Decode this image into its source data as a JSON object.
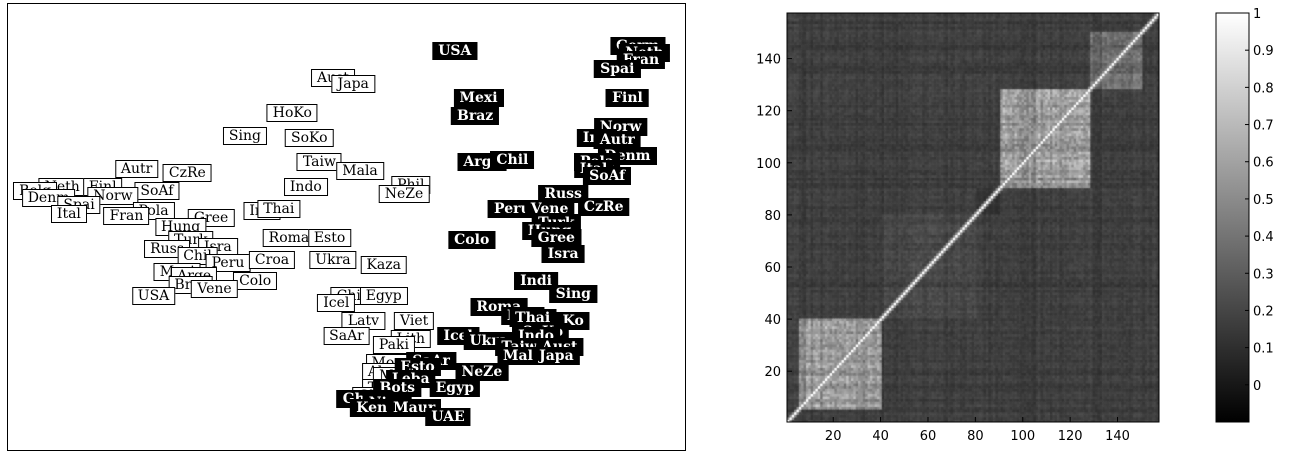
{
  "chart_data": [
    {
      "type": "scatter",
      "labels_white": [
        {
          "t": "Aust",
          "x": 0.48,
          "y": 0.835
        },
        {
          "t": "Japa",
          "x": 0.51,
          "y": 0.82
        },
        {
          "t": "HoKo",
          "x": 0.42,
          "y": 0.755
        },
        {
          "t": "Sing",
          "x": 0.35,
          "y": 0.705
        },
        {
          "t": "SoKo",
          "x": 0.445,
          "y": 0.7
        },
        {
          "t": "Taiw",
          "x": 0.46,
          "y": 0.645
        },
        {
          "t": "Mala",
          "x": 0.52,
          "y": 0.625
        },
        {
          "t": "Indo",
          "x": 0.44,
          "y": 0.59
        },
        {
          "t": "Phil",
          "x": 0.595,
          "y": 0.595
        },
        {
          "t": "NeZe",
          "x": 0.585,
          "y": 0.575
        },
        {
          "t": "Autr",
          "x": 0.19,
          "y": 0.63
        },
        {
          "t": "CzRe",
          "x": 0.265,
          "y": 0.62
        },
        {
          "t": "Neth",
          "x": 0.08,
          "y": 0.59
        },
        {
          "t": "Finl",
          "x": 0.14,
          "y": 0.59
        },
        {
          "t": "SoAf",
          "x": 0.22,
          "y": 0.58
        },
        {
          "t": "Belg",
          "x": 0.04,
          "y": 0.58
        },
        {
          "t": "Norw",
          "x": 0.155,
          "y": 0.57
        },
        {
          "t": "Denm",
          "x": 0.06,
          "y": 0.565
        },
        {
          "t": "Spai",
          "x": 0.105,
          "y": 0.55
        },
        {
          "t": "Ital",
          "x": 0.09,
          "y": 0.53
        },
        {
          "t": "Pola",
          "x": 0.215,
          "y": 0.535
        },
        {
          "t": "Fran",
          "x": 0.175,
          "y": 0.525
        },
        {
          "t": "Gree",
          "x": 0.3,
          "y": 0.52
        },
        {
          "t": "Irel",
          "x": 0.375,
          "y": 0.535
        },
        {
          "t": "Thai",
          "x": 0.4,
          "y": 0.54
        },
        {
          "t": "Hung",
          "x": 0.255,
          "y": 0.5
        },
        {
          "t": "Turk",
          "x": 0.27,
          "y": 0.47
        },
        {
          "t": "Roma",
          "x": 0.415,
          "y": 0.475
        },
        {
          "t": "Esto",
          "x": 0.475,
          "y": 0.475
        },
        {
          "t": "Isra",
          "x": 0.31,
          "y": 0.455
        },
        {
          "t": "Russ",
          "x": 0.235,
          "y": 0.45
        },
        {
          "t": "Chil",
          "x": 0.28,
          "y": 0.435
        },
        {
          "t": "Peru",
          "x": 0.325,
          "y": 0.42
        },
        {
          "t": "Croa",
          "x": 0.39,
          "y": 0.425
        },
        {
          "t": "Ukra",
          "x": 0.48,
          "y": 0.425
        },
        {
          "t": "Kaza",
          "x": 0.555,
          "y": 0.415
        },
        {
          "t": "Mexi",
          "x": 0.25,
          "y": 0.4
        },
        {
          "t": "Arge",
          "x": 0.275,
          "y": 0.39
        },
        {
          "t": "Colo",
          "x": 0.365,
          "y": 0.38
        },
        {
          "t": "Braz",
          "x": 0.27,
          "y": 0.37
        },
        {
          "t": "Vene",
          "x": 0.305,
          "y": 0.36
        },
        {
          "t": "USA",
          "x": 0.215,
          "y": 0.345
        },
        {
          "t": "Chin",
          "x": 0.51,
          "y": 0.345
        },
        {
          "t": "Egyp",
          "x": 0.555,
          "y": 0.345
        },
        {
          "t": "Icel",
          "x": 0.485,
          "y": 0.33
        },
        {
          "t": "Latv",
          "x": 0.525,
          "y": 0.29
        },
        {
          "t": "Viet",
          "x": 0.6,
          "y": 0.29
        },
        {
          "t": "SaAr",
          "x": 0.5,
          "y": 0.255
        },
        {
          "t": "Lith",
          "x": 0.595,
          "y": 0.25
        },
        {
          "t": "Paki",
          "x": 0.57,
          "y": 0.235
        },
        {
          "t": "Moro",
          "x": 0.565,
          "y": 0.195
        },
        {
          "t": "Alge",
          "x": 0.555,
          "y": 0.175
        },
        {
          "t": "Mold",
          "x": 0.575,
          "y": 0.165
        },
        {
          "t": "Tuni",
          "x": 0.555,
          "y": 0.14
        },
        {
          "t": "Ghan",
          "x": 0.545,
          "y": 0.12
        }
      ],
      "labels_black": [
        {
          "t": "USA",
          "x": 0.66,
          "y": 0.895
        },
        {
          "t": "Germ",
          "x": 0.93,
          "y": 0.905
        },
        {
          "t": "Neth",
          "x": 0.94,
          "y": 0.89
        },
        {
          "t": "Fran",
          "x": 0.935,
          "y": 0.875
        },
        {
          "t": "Spai",
          "x": 0.9,
          "y": 0.855
        },
        {
          "t": "Mexi",
          "x": 0.695,
          "y": 0.79
        },
        {
          "t": "Braz",
          "x": 0.69,
          "y": 0.75
        },
        {
          "t": "Finl",
          "x": 0.915,
          "y": 0.79
        },
        {
          "t": "Norw",
          "x": 0.905,
          "y": 0.725
        },
        {
          "t": "Irel",
          "x": 0.87,
          "y": 0.7
        },
        {
          "t": "Autr",
          "x": 0.9,
          "y": 0.695
        },
        {
          "t": "Denm",
          "x": 0.915,
          "y": 0.66
        },
        {
          "t": "Arge",
          "x": 0.7,
          "y": 0.645
        },
        {
          "t": "Chil",
          "x": 0.745,
          "y": 0.65
        },
        {
          "t": "Pola",
          "x": 0.87,
          "y": 0.645
        },
        {
          "t": "Ital",
          "x": 0.865,
          "y": 0.63
        },
        {
          "t": "SoAf",
          "x": 0.885,
          "y": 0.615
        },
        {
          "t": "Russ",
          "x": 0.82,
          "y": 0.575
        },
        {
          "t": "Peru",
          "x": 0.745,
          "y": 0.54
        },
        {
          "t": "Vene",
          "x": 0.8,
          "y": 0.54
        },
        {
          "t": "CzRe",
          "x": 0.88,
          "y": 0.545
        },
        {
          "t": "Turk",
          "x": 0.81,
          "y": 0.51
        },
        {
          "t": "Colo",
          "x": 0.685,
          "y": 0.47
        },
        {
          "t": "Hung",
          "x": 0.8,
          "y": 0.49
        },
        {
          "t": "Gree",
          "x": 0.81,
          "y": 0.475
        },
        {
          "t": "Isra",
          "x": 0.82,
          "y": 0.44
        },
        {
          "t": "Indi",
          "x": 0.78,
          "y": 0.38
        },
        {
          "t": "Sing",
          "x": 0.835,
          "y": 0.35
        },
        {
          "t": "Roma",
          "x": 0.725,
          "y": 0.32
        },
        {
          "t": "Phil",
          "x": 0.76,
          "y": 0.3
        },
        {
          "t": "Thai",
          "x": 0.775,
          "y": 0.295
        },
        {
          "t": "Ko",
          "x": 0.835,
          "y": 0.29
        },
        {
          "t": "SoKo",
          "x": 0.79,
          "y": 0.265
        },
        {
          "t": "Icel",
          "x": 0.665,
          "y": 0.255
        },
        {
          "t": "Ukra",
          "x": 0.71,
          "y": 0.245
        },
        {
          "t": "Indo",
          "x": 0.78,
          "y": 0.255
        },
        {
          "t": "Taiw",
          "x": 0.755,
          "y": 0.23
        },
        {
          "t": "Aust",
          "x": 0.815,
          "y": 0.23
        },
        {
          "t": "Mala",
          "x": 0.76,
          "y": 0.21
        },
        {
          "t": "Japa",
          "x": 0.81,
          "y": 0.21
        },
        {
          "t": "SaAr",
          "x": 0.625,
          "y": 0.2
        },
        {
          "t": "Esto",
          "x": 0.605,
          "y": 0.185
        },
        {
          "t": "NeZe",
          "x": 0.7,
          "y": 0.175
        },
        {
          "t": "Leba",
          "x": 0.595,
          "y": 0.16
        },
        {
          "t": "Bots",
          "x": 0.575,
          "y": 0.14
        },
        {
          "t": "Egyp",
          "x": 0.66,
          "y": 0.14
        },
        {
          "t": "Ghan",
          "x": 0.525,
          "y": 0.115
        },
        {
          "t": "Nige",
          "x": 0.56,
          "y": 0.105
        },
        {
          "t": "Kenya",
          "x": 0.55,
          "y": 0.095
        },
        {
          "t": "Maur",
          "x": 0.6,
          "y": 0.095
        },
        {
          "t": "UAE",
          "x": 0.65,
          "y": 0.075
        }
      ]
    },
    {
      "type": "heatmap",
      "n": 157,
      "xticks": [
        "20",
        "40",
        "60",
        "80",
        "100",
        "120",
        "140"
      ],
      "yticks": [
        "20",
        "40",
        "60",
        "80",
        "100",
        "120",
        "140"
      ],
      "xtick_values": [
        20,
        40,
        60,
        80,
        100,
        120,
        140
      ],
      "ytick_values": [
        20,
        40,
        60,
        80,
        100,
        120,
        140
      ],
      "colorbar_ticks": [
        "1",
        "0.9",
        "0.8",
        "0.7",
        "0.6",
        "0.5",
        "0.4",
        "0.3",
        "0.2",
        "0.1",
        "0"
      ],
      "colorbar_values": [
        1,
        0.9,
        0.8,
        0.7,
        0.6,
        0.5,
        0.4,
        0.3,
        0.2,
        0.1,
        0
      ],
      "colorbar_range": [
        -0.1,
        1
      ],
      "blocks": [
        {
          "range": [
            5,
            40
          ],
          "mean": 0.6
        },
        {
          "range": [
            90,
            128
          ],
          "mean": 0.62
        },
        {
          "range": [
            128,
            150
          ],
          "mean": 0.4
        },
        {
          "range": [
            40,
            80
          ],
          "mean": 0.22
        },
        {
          "range": [
            80,
            90
          ],
          "mean": 0.12
        }
      ],
      "colormap": "gray"
    }
  ]
}
